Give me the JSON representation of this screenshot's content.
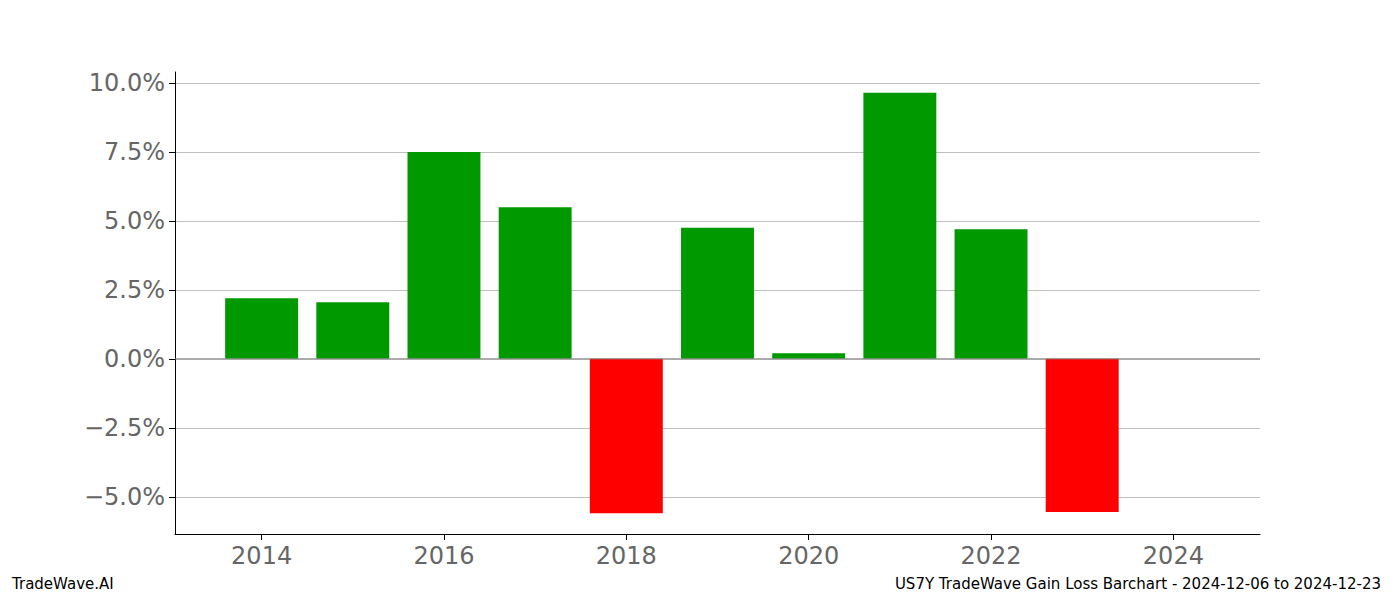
{
  "chart_data": {
    "type": "bar",
    "title": "US7Y TradeWave Gain Loss Barchart - 2024-12-06 to 2024-12-23",
    "annotations": [
      "TradeWave.AI"
    ],
    "x": [
      2014,
      2015,
      2016,
      2017,
      2018,
      2019,
      2020,
      2021,
      2022,
      2023
    ],
    "values": [
      2.2,
      2.05,
      7.5,
      5.5,
      -5.6,
      4.75,
      0.2,
      9.65,
      4.7,
      -5.55
    ],
    "colors": [
      "#009900",
      "#009900",
      "#009900",
      "#009900",
      "#ff0000",
      "#009900",
      "#009900",
      "#009900",
      "#009900",
      "#ff0000"
    ],
    "xlim": [
      2013.05,
      2024.95
    ],
    "xticks": [
      2014,
      2016,
      2018,
      2020,
      2022,
      2024
    ],
    "ylim": [
      -6.35,
      10.4
    ],
    "yticks": [
      {
        "value": -5,
        "label": "−5.0%"
      },
      {
        "value": -2.5,
        "label": "−2.5%"
      },
      {
        "value": 0,
        "label": "0.0%"
      },
      {
        "value": 2.5,
        "label": "2.5%"
      },
      {
        "value": 5,
        "label": "5.0%"
      },
      {
        "value": 7.5,
        "label": "7.5%"
      },
      {
        "value": 10,
        "label": "10.0%"
      }
    ],
    "grid": true
  }
}
